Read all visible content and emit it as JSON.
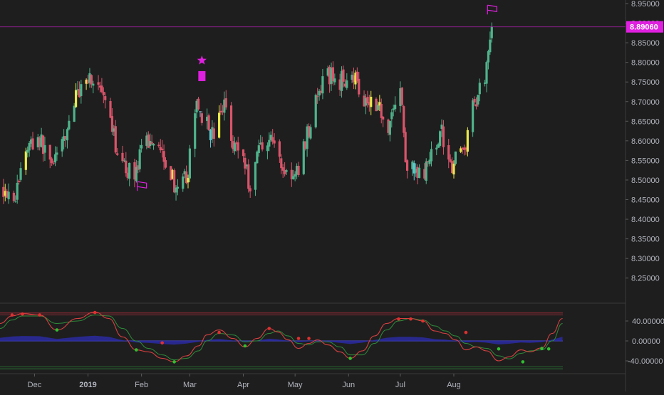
{
  "theme": {
    "background": "#1e1e1e",
    "grid": "#262626",
    "axis_text": "#b2b5be",
    "bull": "#4fb38c",
    "bear": "#d9546a",
    "bull_highlight": "#e8e84a",
    "bear_highlight": "#5ec8d8",
    "marker": "#e020e0",
    "osc_line": "#d84040",
    "osc_signal": "#2e8b3a",
    "osc_hist": "#2a2aa8",
    "osc_band": "#c03040",
    "osc_zero": "#4a4ad8",
    "dot_red": "#e03030",
    "dot_green": "#30c030"
  },
  "chart_data": [
    {
      "type": "candlestick",
      "title": "",
      "xlabel": "",
      "ylabel": "",
      "x_ticks": [
        "Dec",
        "2019",
        "Feb",
        "Mar",
        "Apr",
        "May",
        "Jun",
        "Jul",
        "Aug"
      ],
      "y_ticks": [
        "8.95000",
        "8.90000",
        "8.85000",
        "8.80000",
        "8.75000",
        "8.70000",
        "8.65000",
        "8.60000",
        "8.55000",
        "8.50000",
        "8.45000",
        "8.40000",
        "8.35000",
        "8.30000",
        "8.25000"
      ],
      "ylim": [
        8.205,
        8.97
      ],
      "grid": false,
      "last_price": 8.8906,
      "last_price_label": "8.89060",
      "anchors": [
        [
          "2018-11-13",
          8.48
        ],
        [
          "2018-11-20",
          8.46
        ],
        [
          "2018-11-26",
          8.58
        ],
        [
          "2018-12-03",
          8.61
        ],
        [
          "2018-12-10",
          8.55
        ],
        [
          "2018-12-17",
          8.58
        ],
        [
          "2018-12-24",
          8.7
        ],
        [
          "2018-12-31",
          8.77
        ],
        [
          "2019-01-07",
          8.74
        ],
        [
          "2019-01-14",
          8.64
        ],
        [
          "2019-01-21",
          8.53
        ],
        [
          "2019-01-28",
          8.52
        ],
        [
          "2019-02-04",
          8.6
        ],
        [
          "2019-02-11",
          8.6
        ],
        [
          "2019-02-18",
          8.52
        ],
        [
          "2019-02-22",
          8.46
        ],
        [
          "2019-02-28",
          8.52
        ],
        [
          "2019-03-05",
          8.7
        ],
        [
          "2019-03-11",
          8.64
        ],
        [
          "2019-03-15",
          8.61
        ],
        [
          "2019-03-21",
          8.7
        ],
        [
          "2019-03-26",
          8.6
        ],
        [
          "2019-04-01",
          8.56
        ],
        [
          "2019-04-05",
          8.48
        ],
        [
          "2019-04-10",
          8.59
        ],
        [
          "2019-04-17",
          8.61
        ],
        [
          "2019-04-24",
          8.53
        ],
        [
          "2019-05-01",
          8.5
        ],
        [
          "2019-05-07",
          8.6
        ],
        [
          "2019-05-13",
          8.7
        ],
        [
          "2019-05-20",
          8.77
        ],
        [
          "2019-05-27",
          8.75
        ],
        [
          "2019-06-03",
          8.78
        ],
        [
          "2019-06-10",
          8.71
        ],
        [
          "2019-06-17",
          8.7
        ],
        [
          "2019-06-24",
          8.64
        ],
        [
          "2019-07-01",
          8.74
        ],
        [
          "2019-07-04",
          8.55
        ],
        [
          "2019-07-10",
          8.51
        ],
        [
          "2019-07-17",
          8.53
        ],
        [
          "2019-07-24",
          8.63
        ],
        [
          "2019-07-31",
          8.54
        ],
        [
          "2019-08-07",
          8.58
        ],
        [
          "2019-08-13",
          8.7
        ],
        [
          "2019-08-19",
          8.77
        ],
        [
          "2019-08-23",
          8.89
        ]
      ],
      "markers": [
        {
          "type": "star",
          "date": "2019-03-08",
          "price": 8.805
        },
        {
          "type": "square",
          "date": "2019-03-08",
          "price": 8.765
        },
        {
          "type": "flag",
          "date": "2019-02-01",
          "price": 8.485
        },
        {
          "type": "flag",
          "date": "2019-08-23",
          "price": 8.935
        }
      ]
    },
    {
      "type": "line",
      "title": "",
      "y_ticks": [
        "40.00000",
        "0.00000",
        "-40.00000"
      ],
      "ylim": [
        -62,
        62
      ],
      "bands": [
        56,
        52,
        0,
        -52,
        -56
      ],
      "series": [
        {
          "values": [
            [
              0,
              35
            ],
            [
              7,
              50
            ],
            [
              13,
              55
            ],
            [
              23,
              52
            ],
            [
              33,
              22
            ],
            [
              45,
              45
            ],
            [
              55,
              58
            ],
            [
              63,
              45
            ],
            [
              71,
              8
            ],
            [
              79,
              -18
            ],
            [
              86,
              -22
            ],
            [
              94,
              -35
            ],
            [
              101,
              -42
            ],
            [
              108,
              -30
            ],
            [
              115,
              -10
            ],
            [
              120,
              12
            ],
            [
              127,
              22
            ],
            [
              135,
              5
            ],
            [
              142,
              -12
            ],
            [
              149,
              5
            ],
            [
              156,
              25
            ],
            [
              161,
              18
            ],
            [
              167,
              2
            ],
            [
              173,
              -15
            ],
            [
              179,
              -5
            ],
            [
              184,
              2
            ],
            [
              190,
              -8
            ],
            [
              197,
              -22
            ],
            [
              203,
              -35
            ],
            [
              210,
              -20
            ],
            [
              217,
              10
            ],
            [
              224,
              35
            ],
            [
              231,
              45
            ],
            [
              238,
              45
            ],
            [
              245,
              40
            ],
            [
              252,
              20
            ],
            [
              258,
              15
            ],
            [
              264,
              2
            ],
            [
              270,
              -18
            ],
            [
              276,
              -12
            ],
            [
              282,
              -20
            ],
            [
              289,
              -40
            ],
            [
              295,
              -32
            ],
            [
              302,
              -18
            ],
            [
              307,
              -22
            ],
            [
              314,
              -14
            ],
            [
              320,
              15
            ],
            [
              326,
              45
            ]
          ]
        },
        {
          "values": [
            [
              0,
              25
            ],
            [
              7,
              42
            ],
            [
              13,
              50
            ],
            [
              23,
              50
            ],
            [
              33,
              35
            ],
            [
              45,
              40
            ],
            [
              55,
              52
            ],
            [
              63,
              50
            ],
            [
              71,
              25
            ],
            [
              79,
              0
            ],
            [
              86,
              -15
            ],
            [
              94,
              -28
            ],
            [
              101,
              -38
            ],
            [
              108,
              -35
            ],
            [
              115,
              -20
            ],
            [
              120,
              0
            ],
            [
              127,
              15
            ],
            [
              135,
              12
            ],
            [
              142,
              -2
            ],
            [
              149,
              0
            ],
            [
              156,
              15
            ],
            [
              161,
              20
            ],
            [
              167,
              10
            ],
            [
              173,
              -5
            ],
            [
              179,
              -8
            ],
            [
              184,
              -2
            ],
            [
              190,
              -2
            ],
            [
              197,
              -12
            ],
            [
              203,
              -28
            ],
            [
              210,
              -28
            ],
            [
              217,
              -5
            ],
            [
              224,
              22
            ],
            [
              231,
              40
            ],
            [
              238,
              45
            ],
            [
              245,
              42
            ],
            [
              252,
              30
            ],
            [
              258,
              20
            ],
            [
              264,
              10
            ],
            [
              270,
              -5
            ],
            [
              276,
              -12
            ],
            [
              282,
              -15
            ],
            [
              289,
              -30
            ],
            [
              295,
              -36
            ],
            [
              302,
              -25
            ],
            [
              307,
              -20
            ],
            [
              314,
              -18
            ],
            [
              320,
              0
            ],
            [
              326,
              35
            ]
          ]
        }
      ],
      "signal_dots": [
        {
          "color": "red",
          "day": 7,
          "value": 52
        },
        {
          "color": "red",
          "day": 13,
          "value": 54
        },
        {
          "color": "red",
          "day": 23,
          "value": 52
        },
        {
          "color": "green",
          "day": 33,
          "value": 22
        },
        {
          "color": "red",
          "day": 55,
          "value": 57
        },
        {
          "color": "green",
          "day": 79,
          "value": -18
        },
        {
          "color": "red",
          "day": 94,
          "value": -4
        },
        {
          "color": "green",
          "day": 101,
          "value": -42
        },
        {
          "color": "red",
          "day": 127,
          "value": 17
        },
        {
          "color": "green",
          "day": 142,
          "value": -10
        },
        {
          "color": "red",
          "day": 156,
          "value": 25
        },
        {
          "color": "red",
          "day": 173,
          "value": 5
        },
        {
          "color": "red",
          "day": 179,
          "value": 5
        },
        {
          "color": "green",
          "day": 203,
          "value": -35
        },
        {
          "color": "red",
          "day": 231,
          "value": 44
        },
        {
          "color": "red",
          "day": 238,
          "value": 44
        },
        {
          "color": "red",
          "day": 245,
          "value": 40
        },
        {
          "color": "red",
          "day": 270,
          "value": 17
        },
        {
          "color": "green",
          "day": 289,
          "value": -16
        },
        {
          "color": "green",
          "day": 303,
          "value": -42
        },
        {
          "color": "green",
          "day": 314,
          "value": -15
        },
        {
          "color": "green",
          "day": 318,
          "value": -16
        }
      ]
    }
  ]
}
